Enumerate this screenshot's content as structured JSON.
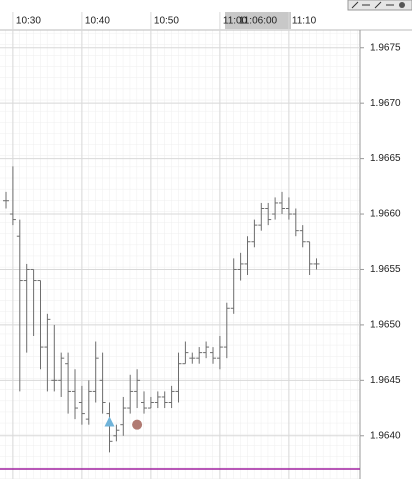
{
  "chart_data": {
    "type": "ohlc",
    "categories": [
      null,
      "10:30",
      null,
      null,
      null,
      null,
      null,
      null,
      null,
      null,
      null,
      "10:40",
      null,
      null,
      null,
      null,
      null,
      null,
      null,
      null,
      null,
      "10:50",
      null,
      null,
      null,
      null,
      null,
      null,
      null,
      null,
      null,
      "11:00",
      null,
      null,
      null,
      null,
      null,
      null,
      null,
      null,
      null,
      "11:10",
      null,
      null,
      null,
      null
    ],
    "series": [
      {
        "color": "#6e6e6e",
        "open": [
          1.96612,
          1.966,
          1.9658,
          1.9654,
          1.9655,
          1.9654,
          1.9648,
          1.9645,
          1.9645,
          1.96465,
          1.9644,
          1.9643,
          1.96415,
          1.9644,
          1.9645,
          1.9642,
          1.964,
          1.9641,
          1.96425,
          1.9644,
          1.9643,
          1.96425,
          1.9643,
          1.96435,
          1.9643,
          1.9644,
          1.96465,
          1.9647,
          1.9647,
          1.96475,
          1.96475,
          1.9647,
          1.9648,
          1.96515,
          1.9655,
          1.96555,
          1.96575,
          1.9659,
          1.96605,
          1.966,
          1.9661,
          1.96605,
          1.966,
          1.96585,
          1.96575,
          1.96555
        ],
        "high": [
          1.9662,
          1.96643,
          1.96595,
          1.96555,
          1.9655,
          1.9654,
          1.9651,
          1.965,
          1.96475,
          1.96475,
          1.9646,
          1.96445,
          1.9645,
          1.96485,
          1.96475,
          1.9643,
          1.9641,
          1.96435,
          1.96455,
          1.9646,
          1.9644,
          1.96435,
          1.9644,
          1.9644,
          1.96445,
          1.96475,
          1.96485,
          1.96475,
          1.9648,
          1.96485,
          1.9648,
          1.9649,
          1.9652,
          1.9656,
          1.96565,
          1.9658,
          1.96595,
          1.9661,
          1.9661,
          1.96615,
          1.9662,
          1.96615,
          1.96605,
          1.9659,
          1.96575,
          1.9656
        ],
        "low": [
          1.96605,
          1.9659,
          1.9644,
          1.96475,
          1.9649,
          1.9646,
          1.9644,
          1.9644,
          1.96435,
          1.9642,
          1.96415,
          1.9641,
          1.9641,
          1.9643,
          1.9642,
          1.96385,
          1.96395,
          1.964,
          1.9642,
          1.96425,
          1.9642,
          1.96425,
          1.96425,
          1.96425,
          1.96425,
          1.9643,
          1.96465,
          1.96465,
          1.96465,
          1.9647,
          1.96465,
          1.9646,
          1.9647,
          1.9651,
          1.9654,
          1.96545,
          1.9657,
          1.96585,
          1.9659,
          1.96595,
          1.966,
          1.96595,
          1.9658,
          1.9657,
          1.96545,
          1.9655
        ],
        "close": [
          1.96612,
          1.96595,
          1.9654,
          1.9655,
          1.9654,
          1.9648,
          1.96505,
          1.9645,
          1.9647,
          1.9644,
          1.96425,
          1.9642,
          1.9644,
          1.9647,
          1.9643,
          1.96395,
          1.96405,
          1.96425,
          1.9644,
          1.9645,
          1.96425,
          1.9643,
          1.96435,
          1.9643,
          1.9644,
          1.96465,
          1.96475,
          1.9647,
          1.96475,
          1.9648,
          1.9647,
          1.9648,
          1.96515,
          1.9655,
          1.96555,
          1.96575,
          1.9659,
          1.96605,
          1.96595,
          1.9661,
          1.96605,
          1.966,
          1.96585,
          1.96575,
          1.96555,
          1.96555
        ]
      }
    ],
    "markers": [
      {
        "shape": "triangle",
        "color": "#6fb3d9",
        "index": 15,
        "value": 1.96412
      },
      {
        "shape": "circle",
        "color": "#b07a72",
        "index": 19,
        "value": 1.9641
      }
    ],
    "hline": {
      "value": 1.9637,
      "color": "#a020a0"
    },
    "crosshair_label": "11:06:00",
    "ylim": [
      1.96361,
      1.96766
    ],
    "yticks": [
      {
        "value": 1.964,
        "label": "1.9640"
      },
      {
        "value": 1.9645,
        "label": "1.9645"
      },
      {
        "value": 1.965,
        "label": "1.9650"
      },
      {
        "value": 1.9655,
        "label": "1.9655"
      },
      {
        "value": 1.966,
        "label": "1.9660"
      },
      {
        "value": 1.9665,
        "label": "1.9665"
      },
      {
        "value": 1.967,
        "label": "1.9670"
      },
      {
        "value": 1.9675,
        "label": "1.9675"
      }
    ],
    "grid": true
  }
}
